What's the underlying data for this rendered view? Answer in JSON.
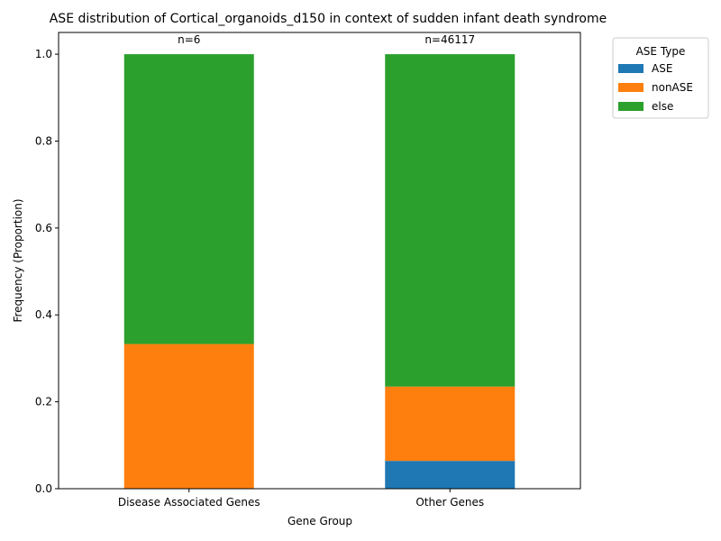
{
  "chart_data": {
    "type": "bar",
    "stacked": true,
    "title": "ASE distribution of Cortical_organoids_d150 in context of sudden infant death syndrome",
    "xlabel": "Gene Group",
    "ylabel": "Frequency (Proportion)",
    "ylim": [
      0,
      1.05
    ],
    "yticks": [
      "0.0",
      "0.2",
      "0.4",
      "0.6",
      "0.8",
      "1.0"
    ],
    "categories": [
      "Disease Associated Genes",
      "Other Genes"
    ],
    "annotations": [
      "n=6",
      "n=46117"
    ],
    "legend": {
      "title": "ASE Type",
      "position": "top-right-outside"
    },
    "series": [
      {
        "name": "ASE",
        "color": "#1f77b4",
        "values": [
          0.0,
          0.064
        ]
      },
      {
        "name": "nonASE",
        "color": "#ff7f0e",
        "values": [
          0.333,
          0.171
        ]
      },
      {
        "name": "else",
        "color": "#2ca02c",
        "values": [
          0.667,
          0.765
        ]
      }
    ]
  }
}
